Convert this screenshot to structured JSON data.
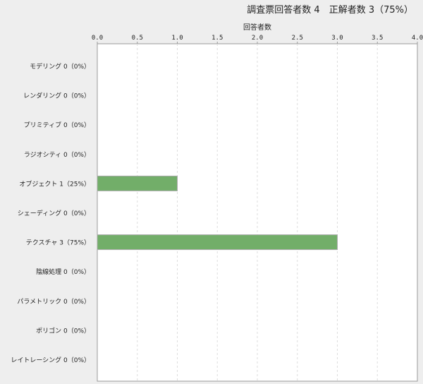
{
  "chart_data": {
    "type": "bar",
    "orientation": "horizontal",
    "title": "調査票回答者数 4　正解者数 3（75%）",
    "xlabel": "回答者数",
    "xlim": [
      0,
      4
    ],
    "xticks": [
      "0.0",
      "0.5",
      "1.0",
      "1.5",
      "2.0",
      "2.5",
      "3.0",
      "3.5",
      "4.0"
    ],
    "grid": true,
    "categories": [
      "モデリング 0（0%）",
      "レンダリング 0（0%）",
      "プリミティブ 0（0%）",
      "ラジオシティ 0（0%）",
      "オブジェクト 1（25%）",
      "シェーディング 0（0%）",
      "テクスチャ 3（75%）",
      "陰線処理 0（0%）",
      "パラメトリック 0（0%）",
      "ポリゴン 0（0%）",
      "レイトレーシング 0（0%）"
    ],
    "values": [
      0,
      0,
      0,
      0,
      1,
      0,
      3,
      0,
      0,
      0,
      0
    ],
    "bar_color": "#72ae69"
  }
}
